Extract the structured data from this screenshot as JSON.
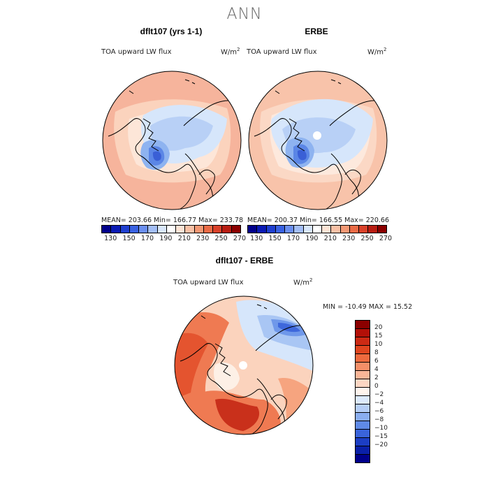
{
  "main_title": "ANN",
  "variable_label": "TOA upward LW flux",
  "units_base": "W/m",
  "units_exp": "2",
  "panels": {
    "left": {
      "title": "dflt107 (yrs 1-1)",
      "stats": "MEAN= 203.66   Min= 166.77   Max= 233.78",
      "colors": {
        "ocean": "#f6b49c",
        "mid": "#fbd3bd",
        "light": "#fde6d8",
        "cold1": "#d6e6fb",
        "cold2": "#b8d0f6",
        "cold3": "#8eb3f0",
        "cold4": "#5b86e6",
        "cold5": "#3a5fd6"
      }
    },
    "right": {
      "title": "ERBE",
      "stats": "MEAN= 200.37   Min= 166.55   Max= 220.66",
      "colors": {
        "ocean": "#f8c3aa",
        "mid": "#fbd8c5",
        "light": "#fde9dd",
        "cold1": "#d6e6fb",
        "cold2": "#b8d0f6",
        "cold3": "#8eb3f0",
        "cold4": "#5b86e6",
        "cold5": "#3a5fd6"
      }
    },
    "diff": {
      "title": "dflt107 - ERBE",
      "minmax": "MIN = -10.49  MAX =  15.52",
      "colors": {
        "base": "#fbd3bd",
        "neutral": "#fdf0e6",
        "warm1": "#f6a47f",
        "warm2": "#ef7a52",
        "warm3": "#e4542f",
        "warm4": "#c9301b",
        "cold1": "#d6e6fb",
        "cold2": "#a9c6f4",
        "cold3": "#6f98ea",
        "cold4": "#3e68dc"
      }
    }
  },
  "abs_colorbar": {
    "colors": [
      "#00008b",
      "#0a1ab4",
      "#1f3fd0",
      "#3a62e2",
      "#6b8ff0",
      "#a3bef6",
      "#d9e7fb",
      "#ffffff",
      "#fde4d6",
      "#f9c1a6",
      "#f39874",
      "#ea6b46",
      "#d9412a",
      "#b81d12",
      "#8b0000"
    ],
    "labels": [
      "130",
      "150",
      "170",
      "190",
      "210",
      "230",
      "250",
      "270"
    ]
  },
  "diff_colorbar": {
    "colors": [
      "#8b0000",
      "#b31008",
      "#cc2a14",
      "#e0451f",
      "#ee6a3e",
      "#f58f68",
      "#f9b597",
      "#fcd6c3",
      "#fff5ee",
      "#dceafd",
      "#b5cef7",
      "#8aaef0",
      "#5f8ae7",
      "#3a64db",
      "#1c3ec4",
      "#0a20a8",
      "#00008b"
    ],
    "labels": [
      "20",
      "15",
      "10",
      "8",
      "6",
      "4",
      "2",
      "0",
      "−2",
      "−4",
      "−6",
      "−8",
      "−10",
      "−15",
      "−20"
    ]
  }
}
